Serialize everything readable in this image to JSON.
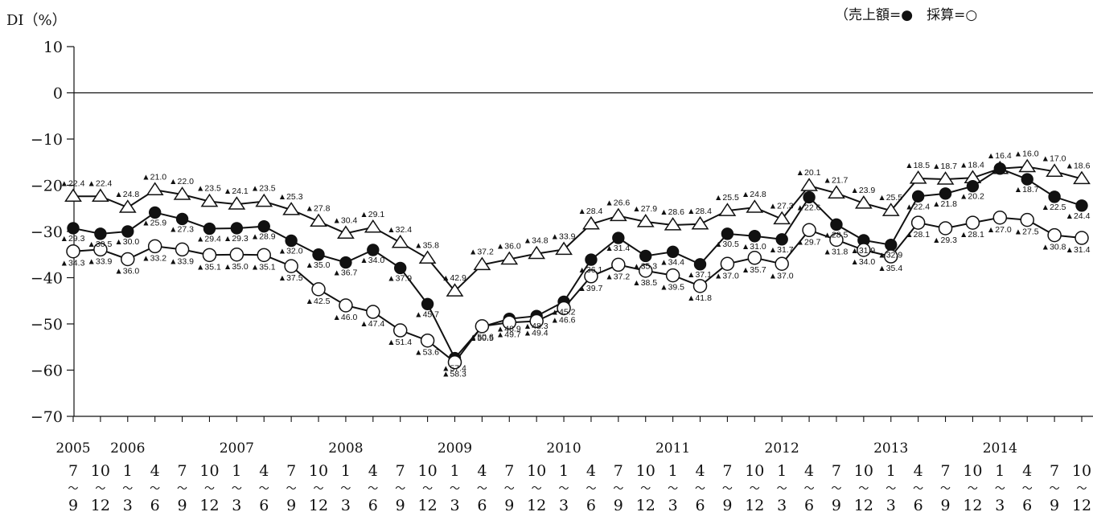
{
  "chart_data": {
    "type": "line",
    "ylabel": "DI（%）",
    "legend_text": "（売上額=●　採算=○",
    "legend_position": "top-right",
    "ylim": [
      -70,
      10
    ],
    "yticks": [
      10,
      0,
      -10,
      -20,
      -30,
      -40,
      -50,
      -60,
      -70
    ],
    "ytick_labels": [
      "10",
      "0",
      "−10",
      "−20",
      "−30",
      "−40",
      "−50",
      "−60",
      "−70"
    ],
    "grid": false,
    "years": [
      {
        "label": "2005",
        "index": 0
      },
      {
        "label": "2006",
        "index": 2
      },
      {
        "label": "2007",
        "index": 6
      },
      {
        "label": "2008",
        "index": 10
      },
      {
        "label": "2009",
        "index": 14
      },
      {
        "label": "2010",
        "index": 18
      },
      {
        "label": "2011",
        "index": 22
      },
      {
        "label": "2012",
        "index": 26
      },
      {
        "label": "2013",
        "index": 30
      },
      {
        "label": "2014",
        "index": 34
      }
    ],
    "period_start": [
      "7",
      "10",
      "1",
      "4",
      "7",
      "10",
      "1",
      "4",
      "7",
      "10",
      "1",
      "4",
      "7",
      "10",
      "1",
      "4",
      "7",
      "10",
      "1",
      "4",
      "7",
      "10",
      "1",
      "4",
      "7",
      "10",
      "1",
      "4",
      "7",
      "10",
      "1",
      "4",
      "7",
      "10",
      "1",
      "4",
      "7",
      "10"
    ],
    "period_end": [
      "9",
      "12",
      "3",
      "6",
      "9",
      "12",
      "3",
      "6",
      "9",
      "12",
      "3",
      "6",
      "9",
      "12",
      "3",
      "6",
      "9",
      "12",
      "3",
      "6",
      "9",
      "12",
      "3",
      "6",
      "9",
      "12",
      "3",
      "6",
      "9",
      "12",
      "3",
      "6",
      "9",
      "12",
      "3",
      "6",
      "9",
      "12"
    ],
    "period_separator": "〜",
    "series": [
      {
        "marker": "triangle-open",
        "values": [
          -22.4,
          -22.4,
          -24.8,
          -21.0,
          -22.0,
          -23.5,
          -24.1,
          -23.5,
          -25.3,
          -27.8,
          -30.4,
          -29.1,
          -32.4,
          -35.8,
          -42.9,
          -37.2,
          -36.0,
          -34.8,
          -33.9,
          -28.4,
          -26.6,
          -27.9,
          -28.6,
          -28.4,
          -25.5,
          -24.8,
          -27.3,
          -20.1,
          -21.7,
          -23.9,
          -25.5,
          -18.5,
          -18.7,
          -18.4,
          -16.4,
          -16.0,
          -17.0,
          -18.6
        ],
        "labels": [
          "▲22.4",
          "▲22.4",
          "▲24.8",
          "▲21.0",
          "▲22.0",
          "▲23.5",
          "▲24.1",
          "▲23.5",
          "▲25.3",
          "▲27.8",
          "▲30.4",
          "▲29.1",
          "▲32.4",
          "▲35.8",
          "▲42.9",
          "▲37.2",
          "▲36.0",
          "▲34.8",
          "▲33.9",
          "▲28.4",
          "▲26.6",
          "▲27.9",
          "▲28.6",
          "▲28.4",
          "▲25.5",
          "▲24.8",
          "▲27.3",
          "▲20.1",
          "▲21.7",
          "▲23.9",
          "▲25.5",
          "▲18.5",
          "▲18.7",
          "▲18.4",
          "▲16.4",
          "▲16.0",
          "▲17.0",
          "▲18.6"
        ]
      },
      {
        "name": "売上額",
        "marker": "circle-filled",
        "values": [
          -29.3,
          -30.5,
          -30.0,
          -25.9,
          -27.3,
          -29.4,
          -29.3,
          -28.9,
          -32.0,
          -35.0,
          -36.7,
          -34.0,
          -37.9,
          -45.7,
          -57.4,
          -50.6,
          -48.9,
          -48.3,
          -45.2,
          -36.1,
          -31.4,
          -35.3,
          -34.4,
          -37.1,
          -30.5,
          -31.0,
          -31.7,
          -22.6,
          -28.5,
          -31.9,
          -32.9,
          -22.4,
          -21.8,
          -20.2,
          -16.4,
          -18.7,
          -22.5,
          -24.4
        ],
        "labels": [
          "▲29.3",
          "▲30.5",
          "▲30.0",
          "▲25.9",
          "▲27.3",
          "▲29.4",
          "▲29.3",
          "▲28.9",
          "▲32.0",
          "▲35.0",
          "▲36.7",
          "▲34.0",
          "▲37.9",
          "▲45.7",
          "▲57.4",
          "▲50.6",
          "▲48.9",
          "▲48.3",
          "▲45.2",
          "▲36.1",
          "▲31.4",
          "▲35.3",
          "▲34.4",
          "▲37.1",
          "▲30.5",
          "▲31.0",
          "▲31.7",
          "▲22.6",
          "▲28.5",
          "▲31.9",
          "▲32.9",
          "▲22.4",
          "▲21.8",
          "▲20.2",
          "",
          "▲18.7",
          "▲22.5",
          "▲24.4"
        ]
      },
      {
        "name": "採算",
        "marker": "circle-open",
        "values": [
          -34.3,
          -33.9,
          -36.0,
          -33.2,
          -33.9,
          -35.1,
          -35.0,
          -35.1,
          -37.5,
          -42.5,
          -46.0,
          -47.4,
          -51.4,
          -53.6,
          -58.3,
          -50.5,
          -49.7,
          -49.4,
          -46.6,
          -39.7,
          -37.2,
          -38.5,
          -39.5,
          -41.8,
          -37.0,
          -35.7,
          -37.0,
          -29.7,
          -31.8,
          -34.0,
          -35.4,
          -28.1,
          -29.3,
          -28.1,
          -27.0,
          -27.5,
          -30.8,
          -31.4
        ],
        "labels": [
          "▲34.3",
          "▲33.9",
          "▲36.0",
          "▲33.2",
          "▲33.9",
          "▲35.1",
          "▲35.0",
          "▲35.1",
          "▲37.5",
          "▲42.5",
          "▲46.0",
          "▲47.4",
          "▲51.4",
          "▲53.6",
          "▲58.3",
          "▲50.5",
          "▲49.7",
          "▲49.4",
          "▲46.6",
          "▲39.7",
          "▲37.2",
          "▲38.5",
          "▲39.5",
          "▲41.8",
          "▲37.0",
          "▲35.7",
          "▲37.0",
          "▲29.7",
          "▲31.8",
          "▲34.0",
          "▲35.4",
          "▲28.1",
          "▲29.3",
          "▲28.1",
          "▲27.0",
          "▲27.5",
          "▲30.8",
          "▲31.4"
        ]
      }
    ]
  }
}
